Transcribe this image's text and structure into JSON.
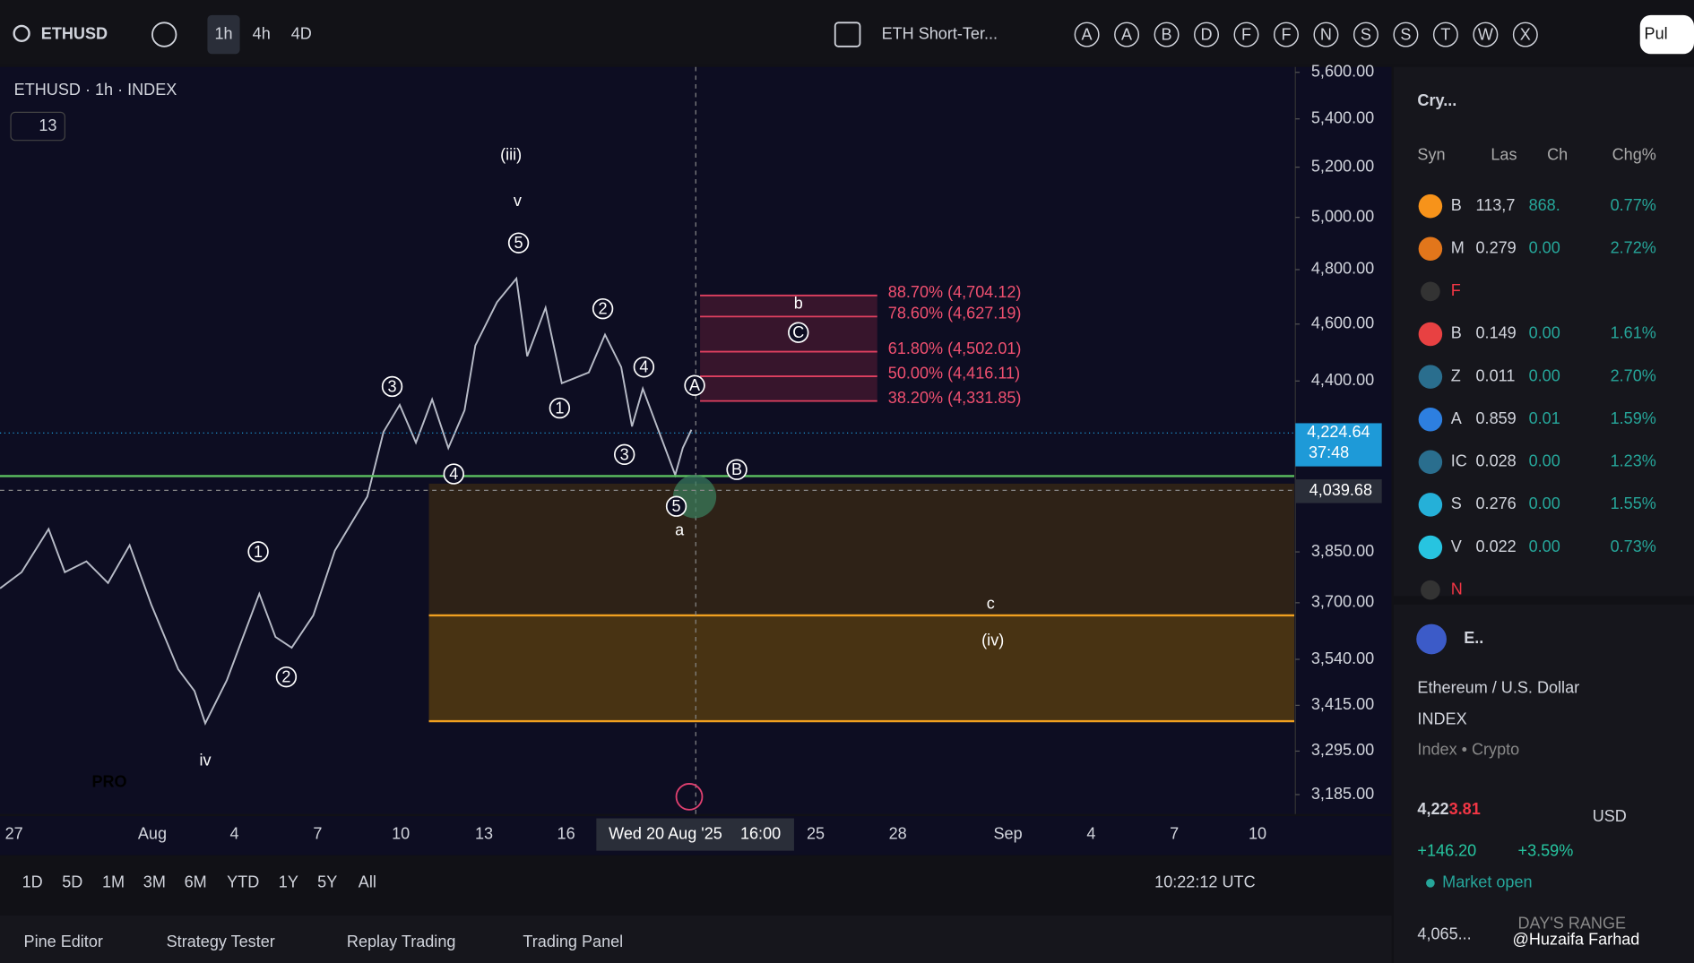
{
  "toolbar": {
    "symbol": "ETHUSD",
    "intervals": [
      "1h",
      "4h",
      "4D"
    ],
    "layout_name": "ETH Short-Ter...",
    "alerts": [
      "A",
      "A",
      "B",
      "D",
      "F",
      "F",
      "N",
      "S",
      "S",
      "T",
      "W",
      "X"
    ],
    "publish": "Pul"
  },
  "chart": {
    "legend": "ETHUSD · 1h · INDEX",
    "indicator_count": "13",
    "log_scale": true,
    "price_ticks": [
      {
        "value": 5600,
        "label": "5,600.00"
      },
      {
        "value": 5400,
        "label": "5,400.00"
      },
      {
        "value": 5200,
        "label": "5,200.00"
      },
      {
        "value": 5000,
        "label": "5,000.00"
      },
      {
        "value": 4800,
        "label": "4,800.00"
      },
      {
        "value": 4600,
        "label": "4,600.00"
      },
      {
        "value": 4400,
        "label": "4,400.00"
      },
      {
        "value": 3850,
        "label": "3,850.00"
      },
      {
        "value": 3700,
        "label": "3,700.00"
      },
      {
        "value": 3540,
        "label": "3,540.00"
      },
      {
        "value": 3415,
        "label": "3,415.00"
      },
      {
        "value": 3295,
        "label": "3,295.00"
      },
      {
        "value": 3185,
        "label": "3,185.00"
      }
    ],
    "last_price": {
      "value": 4224.64,
      "label": "4,224.64"
    },
    "countdown": "37:48",
    "crosshair_price": {
      "value": 4039.68,
      "label": "4,039.68"
    },
    "fib_levels": [
      {
        "value": 4704.12,
        "label": "88.70% (4,704.12)"
      },
      {
        "value": 4627.19,
        "label": "78.60% (4,627.19)"
      },
      {
        "value": 4502.01,
        "label": "61.80% (4,502.01)"
      },
      {
        "value": 4416.11,
        "label": "50.00% (4,416.11)"
      },
      {
        "value": 4331.85,
        "label": "38.20% (4,331.85)"
      }
    ],
    "wave_labels": [
      "(iii)",
      "v",
      "iv",
      "a",
      "b",
      "c",
      "(iv)"
    ],
    "circled_labels": [
      "5",
      "3",
      "4",
      "1",
      "2",
      "2",
      "4",
      "1",
      "3",
      "5",
      "A",
      "B",
      "C"
    ],
    "date_axis": [
      "27",
      "Aug",
      "4",
      "7",
      "10",
      "13",
      "16",
      "Wed 20 Aug '25",
      "16:00",
      "25",
      "28",
      "Sep",
      "4",
      "7",
      "10"
    ],
    "logo": "PRO"
  },
  "range_bar": {
    "ranges": [
      "1D",
      "5D",
      "1M",
      "3M",
      "6M",
      "YTD",
      "1Y",
      "5Y",
      "All"
    ],
    "clock": "10:22:12 UTC"
  },
  "bottom_tabs": [
    "Pine Editor",
    "Strategy Tester",
    "Replay Trading",
    "Trading Panel"
  ],
  "watchlist": {
    "name": "Cry...",
    "columns": [
      "Syn",
      "Las",
      "Ch",
      "Chg%"
    ],
    "rows": [
      {
        "sym": "B",
        "last": "113,7",
        "chg": "868.",
        "pct": "0.77%"
      },
      {
        "sym": "M",
        "last": "0.279",
        "chg": "0.00",
        "pct": "2.72%"
      },
      {
        "section": "F"
      },
      {
        "sym": "B",
        "last": "0.149",
        "chg": "0.00",
        "pct": "1.61%"
      },
      {
        "sym": "Z",
        "last": "0.011",
        "chg": "0.00",
        "pct": "2.70%"
      },
      {
        "sym": "A",
        "last": "0.859",
        "chg": "0.01",
        "pct": "1.59%"
      },
      {
        "sym": "IC",
        "last": "0.028",
        "chg": "0.00",
        "pct": "1.23%"
      },
      {
        "sym": "S",
        "last": "0.276",
        "chg": "0.00",
        "pct": "1.55%"
      },
      {
        "sym": "V",
        "last": "0.022",
        "chg": "0.00",
        "pct": "0.73%"
      },
      {
        "section": "N"
      }
    ]
  },
  "details": {
    "short": "E..",
    "name": "Ethereum / U.S. Dollar",
    "exchange": "INDEX",
    "category": "Index • Crypto",
    "price_main": "4,22",
    "price_tail": "3.81",
    "currency": "USD",
    "change": "+146.20",
    "change_pct": "+3.59%",
    "status": "Market open",
    "range_low": "4,065...",
    "range_label": "DAY'S RANGE",
    "watermark": "@Huzaifa Farhad"
  }
}
